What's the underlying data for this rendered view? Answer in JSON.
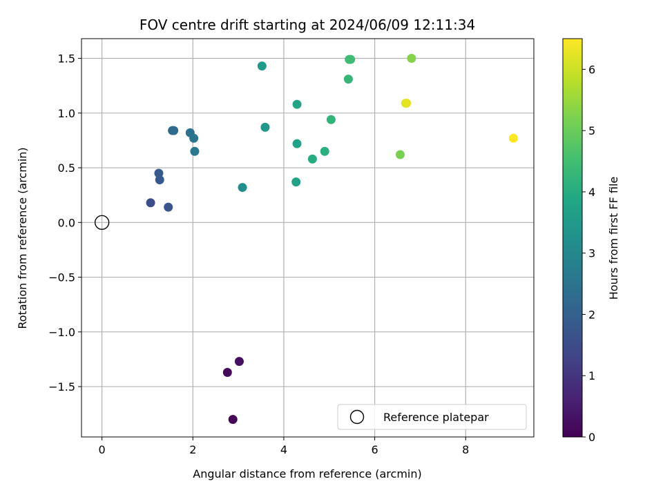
{
  "chart_data": {
    "type": "scatter",
    "title": "FOV centre drift starting at 2024/06/09 12:11:34",
    "xlabel": "Angular distance from reference (arcmin)",
    "ylabel": "Rotation from reference (arcmin)",
    "xlim": [
      -0.45,
      9.5
    ],
    "ylim": [
      -1.96,
      1.68
    ],
    "xticks": [
      0,
      2,
      4,
      6,
      8
    ],
    "xtick_labels": [
      "0",
      "2",
      "4",
      "6",
      "8"
    ],
    "yticks": [
      -1.5,
      -1.0,
      -0.5,
      0.0,
      0.5,
      1.0,
      1.5
    ],
    "ytick_labels": [
      "−1.5",
      "−1.0",
      "−0.5",
      "0.0",
      "0.5",
      "1.0",
      "1.5"
    ],
    "grid": true,
    "colorbar": {
      "label": "Hours from first FF file",
      "colormap": "viridis",
      "range": [
        0,
        6.5
      ],
      "ticks": [
        0,
        1,
        2,
        3,
        4,
        5,
        6
      ],
      "tick_labels": [
        "0",
        "1",
        "2",
        "3",
        "4",
        "5",
        "6"
      ]
    },
    "legend": {
      "placement": "lower-right",
      "entries": [
        {
          "label": "Reference platepar",
          "marker": "open-circle"
        }
      ]
    },
    "reference_point": {
      "x": 0,
      "y": 0
    },
    "points": [
      {
        "x": 2.88,
        "y": -1.8,
        "hours": 0.05
      },
      {
        "x": 2.76,
        "y": -1.37,
        "hours": 0.15
      },
      {
        "x": 3.02,
        "y": -1.27,
        "hours": 0.25
      },
      {
        "x": 1.07,
        "y": 0.18,
        "hours": 1.5
      },
      {
        "x": 1.46,
        "y": 0.14,
        "hours": 1.7
      },
      {
        "x": 1.27,
        "y": 0.39,
        "hours": 1.8
      },
      {
        "x": 1.25,
        "y": 0.45,
        "hours": 1.85
      },
      {
        "x": 1.55,
        "y": 0.84,
        "hours": 2.2
      },
      {
        "x": 1.58,
        "y": 0.84,
        "hours": 2.25
      },
      {
        "x": 1.94,
        "y": 0.82,
        "hours": 2.4
      },
      {
        "x": 2.02,
        "y": 0.77,
        "hours": 2.5
      },
      {
        "x": 2.04,
        "y": 0.65,
        "hours": 2.6
      },
      {
        "x": 3.09,
        "y": 0.32,
        "hours": 3.2
      },
      {
        "x": 3.59,
        "y": 0.87,
        "hours": 3.4
      },
      {
        "x": 3.52,
        "y": 1.43,
        "hours": 3.5
      },
      {
        "x": 4.27,
        "y": 0.37,
        "hours": 3.7
      },
      {
        "x": 4.29,
        "y": 0.72,
        "hours": 3.75
      },
      {
        "x": 4.29,
        "y": 1.08,
        "hours": 3.8
      },
      {
        "x": 4.63,
        "y": 0.58,
        "hours": 4.0
      },
      {
        "x": 4.9,
        "y": 0.65,
        "hours": 4.1
      },
      {
        "x": 5.04,
        "y": 0.94,
        "hours": 4.2
      },
      {
        "x": 5.42,
        "y": 1.31,
        "hours": 4.3
      },
      {
        "x": 5.44,
        "y": 1.49,
        "hours": 4.4
      },
      {
        "x": 5.47,
        "y": 1.49,
        "hours": 4.45
      },
      {
        "x": 6.56,
        "y": 0.62,
        "hours": 5.2
      },
      {
        "x": 6.81,
        "y": 1.5,
        "hours": 5.3
      },
      {
        "x": 6.68,
        "y": 1.09,
        "hours": 6.2
      },
      {
        "x": 6.7,
        "y": 1.09,
        "hours": 6.25
      },
      {
        "x": 9.05,
        "y": 0.77,
        "hours": 6.5
      }
    ]
  }
}
